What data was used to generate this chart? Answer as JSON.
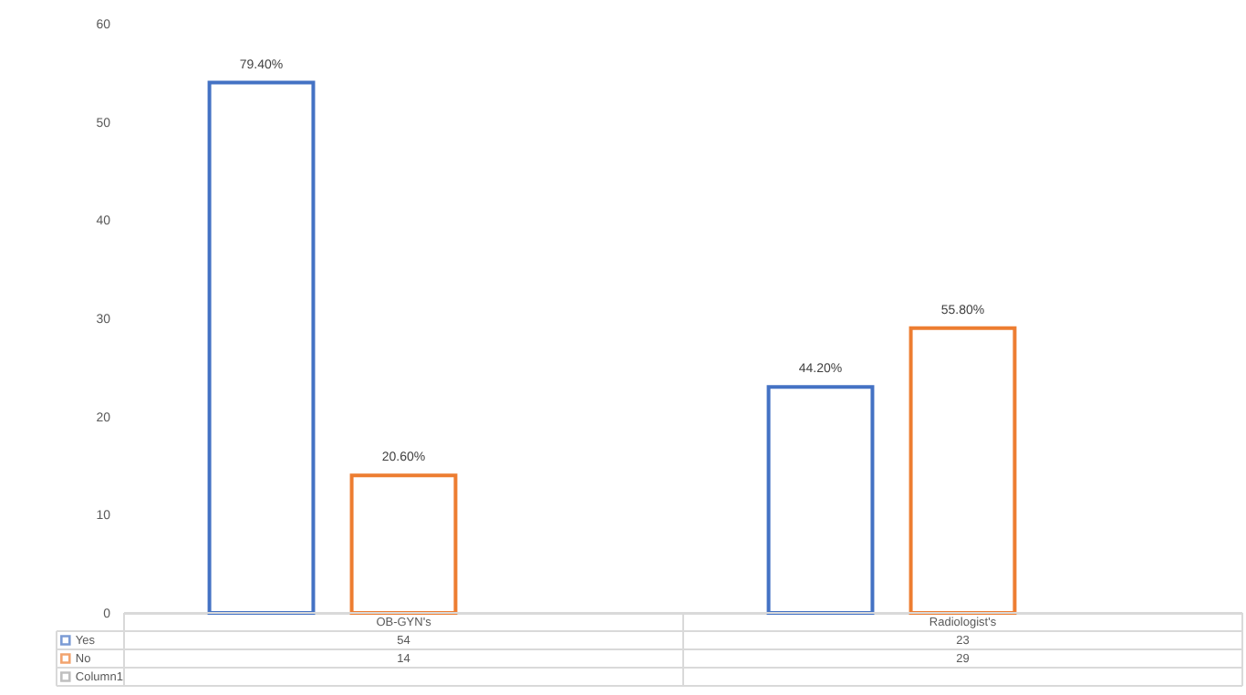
{
  "chart_data": {
    "type": "bar",
    "categories": [
      "OB-GYN's",
      "Radiologist's"
    ],
    "series": [
      {
        "name": "Yes",
        "color": "#4472c4",
        "values": [
          54,
          23
        ],
        "value_labels": [
          "54",
          "23"
        ]
      },
      {
        "name": "No",
        "color": "#ed7d31",
        "values": [
          14,
          29
        ],
        "value_labels": [
          "14",
          "29"
        ]
      },
      {
        "name": "Column1",
        "color": "#a5a5a5",
        "values": [
          null,
          null
        ]
      }
    ],
    "annotations": [
      "79.40%",
      "44.20%",
      "20.60%",
      "55.80%"
    ],
    "ylim": [
      0,
      60
    ],
    "yticks": [
      0,
      10,
      20,
      30,
      40,
      50,
      60
    ],
    "grid": false,
    "legend": "bottom"
  }
}
